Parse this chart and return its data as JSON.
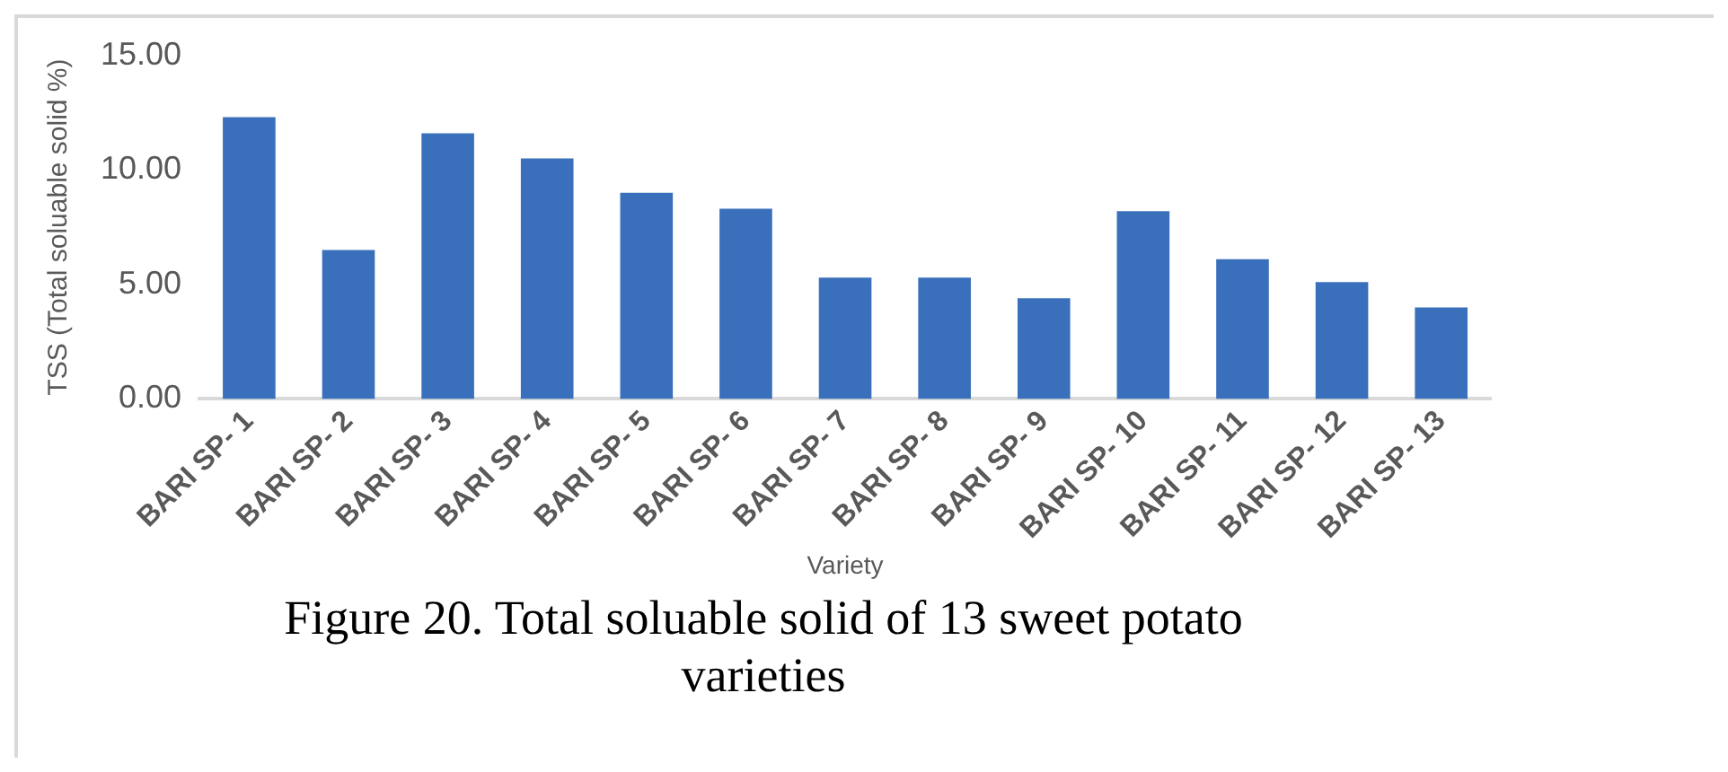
{
  "chart_data": {
    "type": "bar",
    "xlabel": "Variety",
    "ylabel": "TSS (Total soluable solid %)",
    "categories": [
      "BARI SP- 1",
      "BARI SP- 2",
      "BARI SP- 3",
      "BARI SP- 4",
      "BARI SP- 5",
      "BARI SP- 6",
      "BARI SP- 7",
      "BARI SP- 8",
      "BARI SP- 9",
      "BARI SP- 10",
      "BARI SP- 11",
      "BARI SP- 12",
      "BARI SP- 13"
    ],
    "values": [
      12.3,
      6.5,
      11.6,
      10.5,
      9.0,
      8.3,
      5.3,
      5.3,
      4.4,
      8.2,
      6.1,
      5.1,
      4.0
    ],
    "color": "#3a70bb",
    "ylim": [
      0,
      15
    ],
    "yticks": [
      {
        "value": 0,
        "label": "0.00"
      },
      {
        "value": 5,
        "label": "5.00"
      },
      {
        "value": 10,
        "label": "10.00"
      },
      {
        "value": 15,
        "label": "15.00"
      }
    ],
    "grid": false,
    "legend": false,
    "annotations": [
      "Figure 20. Total soluable solid of 13 sweet potato varieties"
    ]
  }
}
